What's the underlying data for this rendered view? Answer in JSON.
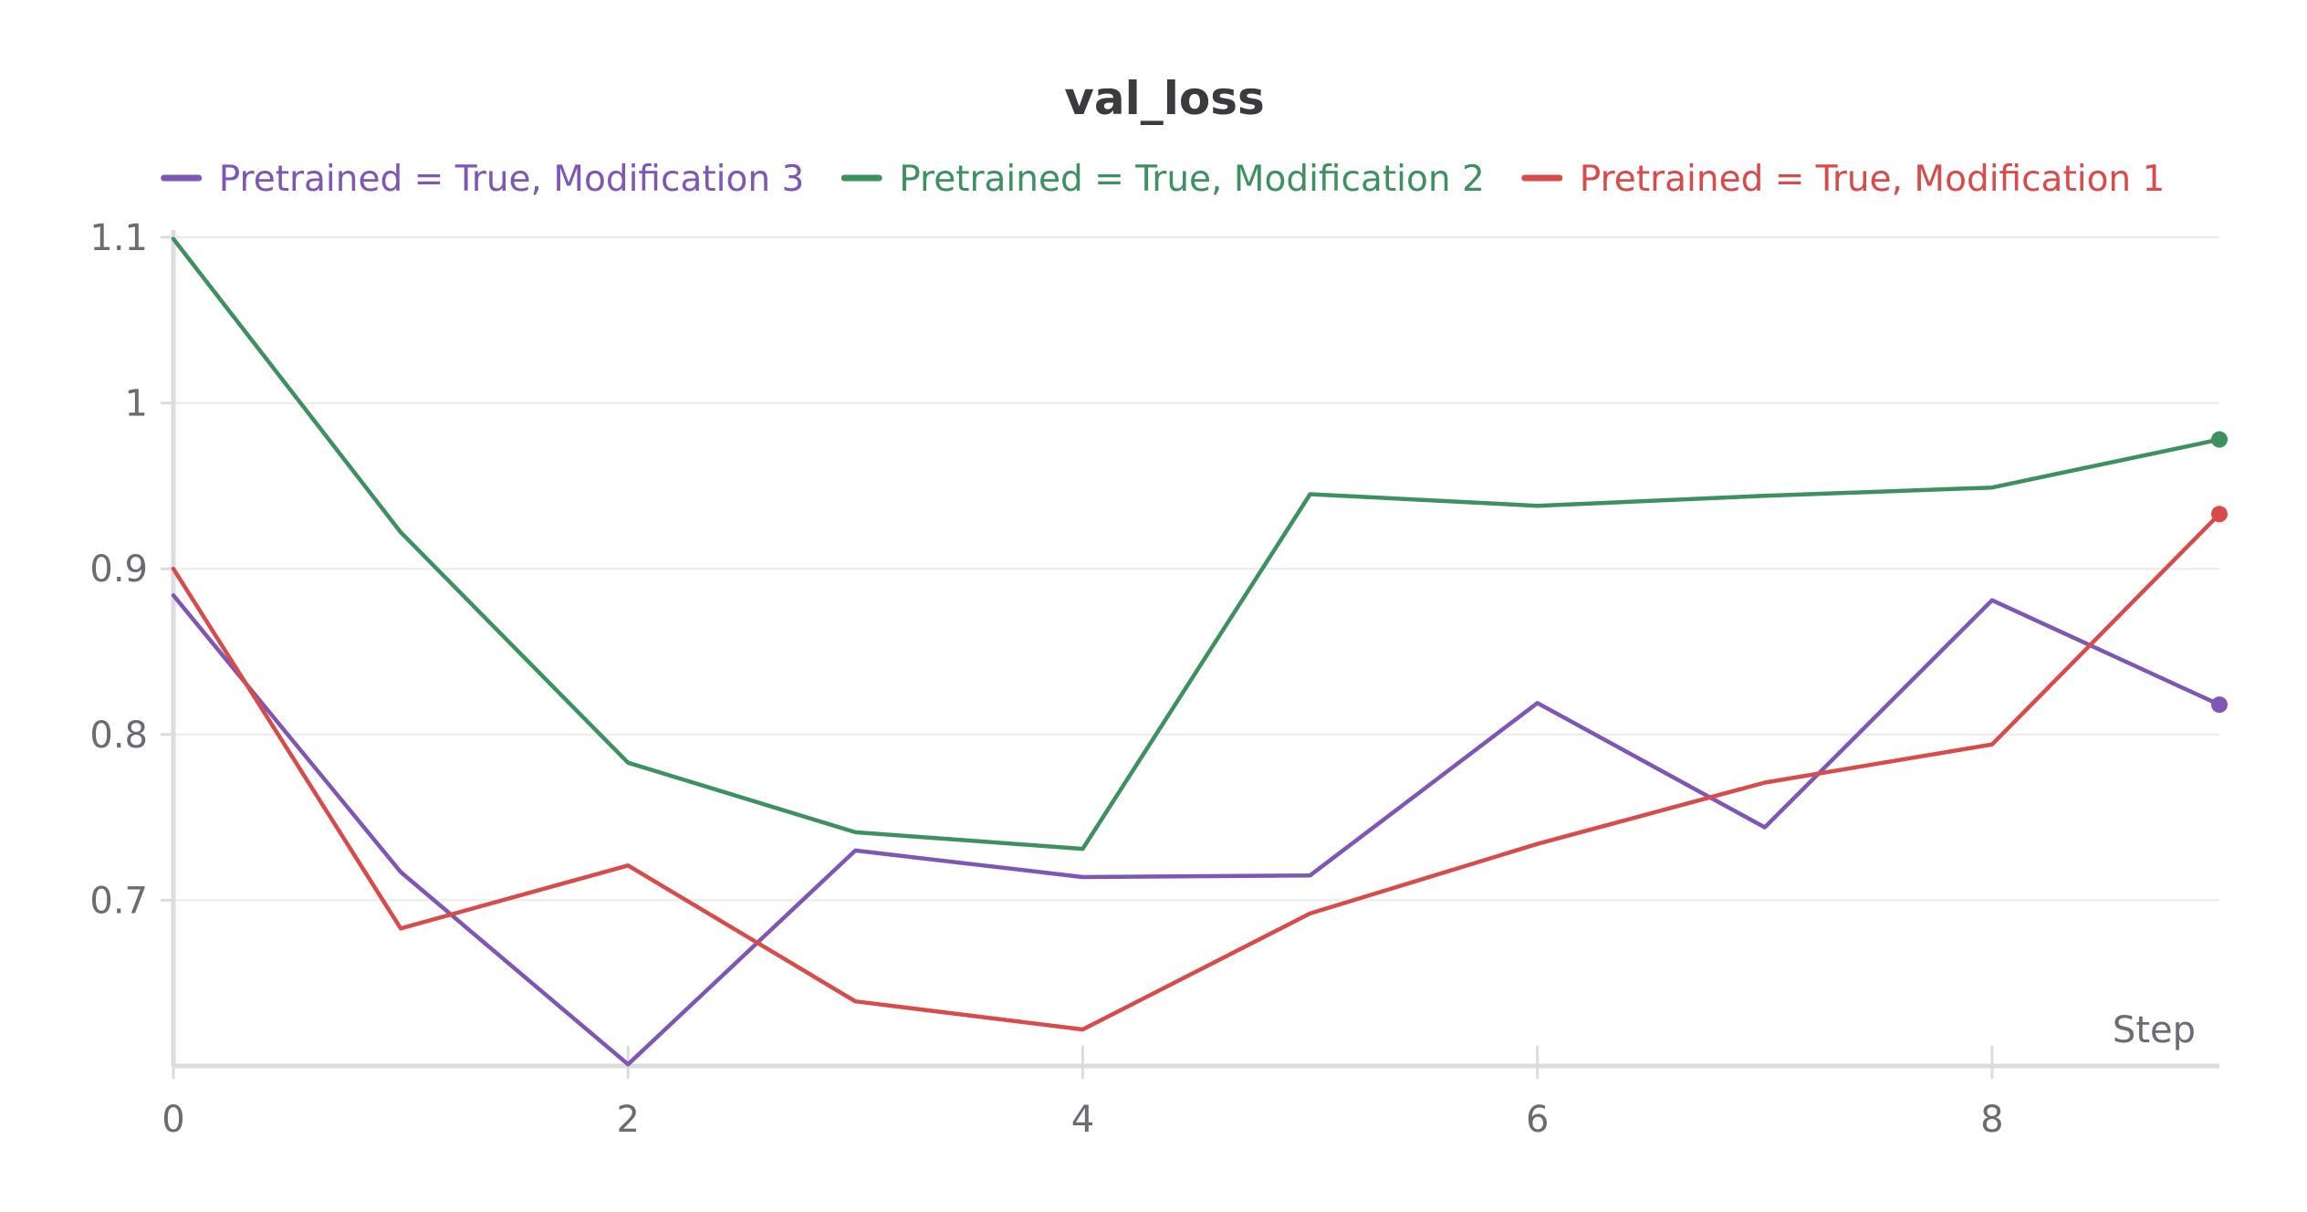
{
  "chart_data": {
    "type": "line",
    "title": "val_loss",
    "xlabel": "Step",
    "ylabel": "",
    "xlim": [
      0,
      9
    ],
    "ylim": [
      0.6,
      1.1
    ],
    "x_ticks": [
      0,
      2,
      4,
      6,
      8
    ],
    "x_tick_labels": [
      "0",
      "2",
      "4",
      "6",
      "8"
    ],
    "y_ticks": [
      0.7,
      0.8,
      0.9,
      1.0,
      1.1
    ],
    "y_tick_labels": [
      "0.7",
      "0.8",
      "0.9",
      "1",
      "1.1"
    ],
    "grid": true,
    "legend_position": "top",
    "x": [
      0,
      1,
      2,
      3,
      4,
      5,
      6,
      7,
      8,
      9
    ],
    "series": [
      {
        "name": "Pretrained = True, Modification 3",
        "color": "#7e57b5",
        "values": [
          0.884,
          0.717,
          0.601,
          0.73,
          0.714,
          0.715,
          0.819,
          0.744,
          0.881,
          0.818
        ]
      },
      {
        "name": "Pretrained = True, Modification 2",
        "color": "#3d9160",
        "values": [
          1.099,
          0.922,
          0.783,
          0.741,
          0.731,
          0.945,
          0.938,
          0.944,
          0.949,
          0.978
        ]
      },
      {
        "name": "Pretrained = True, Modification 1",
        "color": "#d94a4a",
        "values": [
          0.9,
          0.683,
          0.721,
          0.639,
          0.622,
          0.692,
          0.734,
          0.771,
          0.794,
          0.933
        ]
      }
    ]
  }
}
